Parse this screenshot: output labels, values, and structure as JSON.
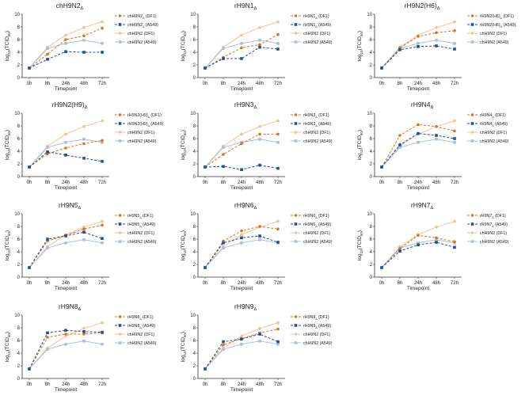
{
  "chart_data": {
    "type": "line",
    "x": [
      "0h",
      "8h",
      "24h",
      "48h",
      "72h"
    ],
    "xlabel": "Timepoint",
    "ylabel": "log10(TCID50)",
    "ylim": [
      0,
      10
    ],
    "yticks": [
      0,
      2,
      4,
      6,
      8,
      10
    ],
    "colors": {
      "df1": "#d9731c",
      "a549": "#1f4e9c",
      "ref_df1": "#f4c08f",
      "ref_a549": "#a9bfdf"
    },
    "reference": {
      "df1": {
        "name": "chH9N2 (DF1)",
        "values": [
          1.5,
          4.8,
          6.7,
          7.9,
          8.8
        ]
      },
      "a549": {
        "name": "chH9N2 (A549)",
        "values": [
          1.5,
          4.6,
          5.4,
          5.9,
          5.4
        ]
      }
    },
    "panels": [
      {
        "title": "chH9N2Δ",
        "df1": {
          "name": "chH9N2Δ (DF1)",
          "values": [
            1.5,
            3.7,
            6.0,
            6.6,
            7.8
          ]
        },
        "a549": {
          "name": "chH9N2Δ (A549)",
          "values": [
            1.5,
            2.9,
            4.1,
            4.0,
            4.0
          ]
        }
      },
      {
        "title": "rH9N1Δ",
        "df1": {
          "name": "rH9N1Δ (DF1)",
          "values": [
            1.5,
            3.2,
            4.7,
            5.2,
            6.8
          ]
        },
        "a549": {
          "name": "rH9N1Δ (A549)",
          "values": [
            1.5,
            3.0,
            3.0,
            4.8,
            4.5
          ]
        }
      },
      {
        "title": "rH9N2(H6)Δ",
        "df1": {
          "name": "rH9N2(H6)Δ (DF1)",
          "values": [
            1.5,
            4.7,
            6.5,
            7.1,
            7.4
          ]
        },
        "a549": {
          "name": "rH9N2(H6)Δ (A549)",
          "values": [
            1.5,
            4.4,
            4.9,
            5.0,
            4.5
          ]
        }
      },
      {
        "title": "rH9N2(H9)Δ",
        "df1": {
          "name": "rH9N2(H9)Δ (DF1)",
          "values": [
            1.5,
            3.6,
            4.5,
            5.2,
            5.7
          ]
        },
        "a549": {
          "name": "rH9N2(H9)Δ (A549)",
          "values": [
            1.5,
            3.9,
            3.4,
            2.9,
            2.4
          ]
        }
      },
      {
        "title": "rH9N3Δ",
        "df1": {
          "name": "rH9N3Δ (DF1)",
          "values": [
            1.5,
            3.5,
            5.2,
            6.7,
            6.7
          ]
        },
        "a549": {
          "name": "rH9N3Δ (A549)",
          "values": [
            1.5,
            1.6,
            1.1,
            1.8,
            1.3
          ]
        }
      },
      {
        "title": "rH9N4Δ",
        "df1": {
          "name": "rH9N4Δ (DF1)",
          "values": [
            1.5,
            6.5,
            8.2,
            7.9,
            7.2
          ]
        },
        "a549": {
          "name": "rH9N4Δ (A549)",
          "values": [
            1.5,
            5.0,
            6.8,
            6.5,
            6.0
          ]
        }
      },
      {
        "title": "rH9N5Δ",
        "df1": {
          "name": "rH9N5Δ (DF1)",
          "values": [
            1.5,
            5.7,
            6.6,
            7.6,
            8.2
          ]
        },
        "a549": {
          "name": "rH9N5Δ (A549)",
          "values": [
            1.5,
            6.0,
            6.5,
            7.1,
            6.1
          ]
        }
      },
      {
        "title": "rH9N6Δ",
        "df1": {
          "name": "rH9N6Δ (DF1)",
          "values": [
            1.5,
            5.7,
            7.3,
            8.0,
            7.6
          ]
        },
        "a549": {
          "name": "rH9N6Δ (A549)",
          "values": [
            1.5,
            5.4,
            6.2,
            6.5,
            5.5
          ]
        }
      },
      {
        "title": "rH9N7Δ",
        "df1": {
          "name": "rH9N7Δ (DF1)",
          "values": [
            1.5,
            4.5,
            6.6,
            6.2,
            5.6
          ]
        },
        "a549": {
          "name": "rH9N7Δ (A549)",
          "values": [
            1.5,
            4.1,
            5.1,
            5.5,
            4.7
          ]
        }
      },
      {
        "title": "rH9N8Δ",
        "df1": {
          "name": "rH9N8Δ (DF1)",
          "values": [
            1.5,
            6.5,
            7.0,
            7.0,
            7.2
          ]
        },
        "a549": {
          "name": "rH9N8Δ (A549)",
          "values": [
            1.5,
            7.2,
            7.6,
            7.4,
            7.3
          ]
        }
      },
      {
        "title": "rH9N9Δ",
        "df1": {
          "name": "rH9N9Δ (DF1)",
          "values": [
            1.5,
            5.3,
            6.3,
            7.2,
            7.8
          ]
        },
        "a549": {
          "name": "rH9N9Δ (A549)",
          "values": [
            1.5,
            5.8,
            6.2,
            7.0,
            5.8
          ]
        }
      }
    ]
  }
}
